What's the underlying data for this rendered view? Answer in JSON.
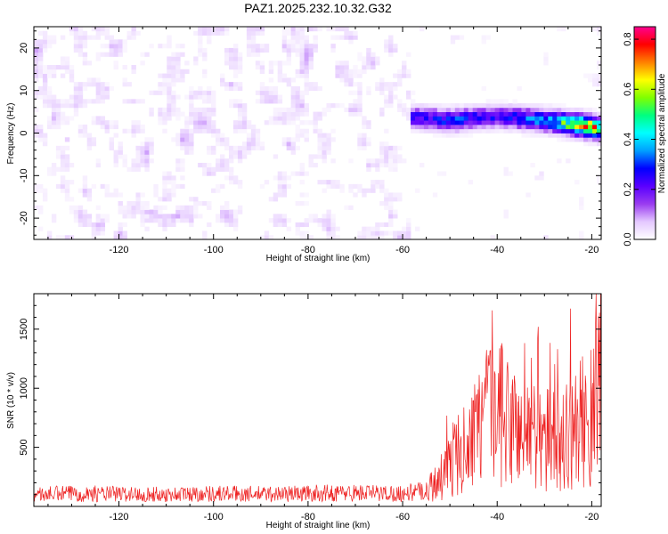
{
  "title": "PAZ1.2025.232.10.32.G32",
  "chart_data": [
    {
      "type": "heatmap",
      "xlabel": "Height of straight line (km)",
      "ylabel": "Frequency (Hz)",
      "xlim": [
        -138,
        -18
      ],
      "ylim": [
        -25,
        25
      ],
      "x_ticks": [
        -120,
        -100,
        -80,
        -60,
        -40,
        -20
      ],
      "y_ticks": [
        -20,
        -10,
        0,
        10,
        20
      ],
      "colorbar": {
        "label": "Normalized spectral amplitude",
        "range": [
          0,
          0.85
        ],
        "ticks": [
          0.0,
          0.2,
          0.4,
          0.6,
          0.8
        ],
        "colormap": "rainbow",
        "colors": [
          "#ffffff",
          "#e4c8ff",
          "#9a3cf0",
          "#5a00ff",
          "#0000ff",
          "#00a0ff",
          "#00ffff",
          "#00ff80",
          "#80ff00",
          "#ffff00",
          "#ff8000",
          "#ff0000",
          "#ff0090"
        ]
      },
      "ridge": {
        "x": [
          -60,
          -50,
          -40,
          -30,
          -20,
          -18
        ],
        "y": [
          4,
          3,
          4,
          3,
          1.5,
          1
        ],
        "peak_amplitude": [
          0.22,
          0.3,
          0.25,
          0.35,
          0.72,
          0.6
        ]
      }
    },
    {
      "type": "line",
      "xlabel": "Height of straight line (km)",
      "ylabel": "SNR (10 * v/v)",
      "xlim": [
        -138,
        -18
      ],
      "ylim": [
        0,
        1800
      ],
      "x_ticks": [
        -120,
        -100,
        -80,
        -60,
        -40,
        -20
      ],
      "y_ticks": [
        500,
        1000,
        1500
      ],
      "line_color": "#ee2222",
      "series": [
        {
          "x": [
            -138,
            -130,
            -120,
            -110,
            -100,
            -90,
            -80,
            -70,
            -60,
            -56,
            -54,
            -52,
            -50,
            -48,
            -46,
            -44,
            -42,
            -40,
            -38,
            -36,
            -34,
            -32,
            -30,
            -28,
            -26,
            -24,
            -22,
            -20,
            -19,
            -18
          ],
          "y": [
            100,
            110,
            105,
            100,
            110,
            105,
            110,
            115,
            110,
            130,
            250,
            320,
            480,
            620,
            750,
            850,
            1000,
            1100,
            950,
            900,
            800,
            850,
            750,
            750,
            800,
            850,
            950,
            1000,
            1300,
            1550
          ]
        }
      ]
    }
  ]
}
